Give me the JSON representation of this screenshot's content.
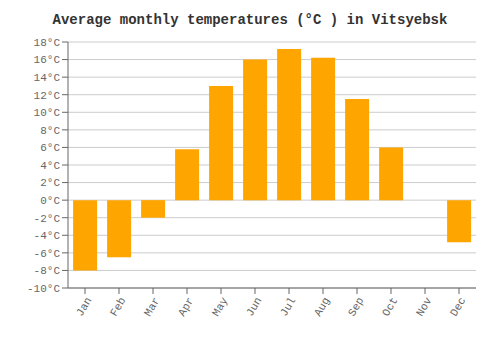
{
  "chart_data": {
    "type": "bar",
    "title": "Average monthly temperatures (°C ) in Vitsyebsk",
    "categories": [
      "Jan",
      "Feb",
      "Mar",
      "Apr",
      "May",
      "Jun",
      "Jul",
      "Aug",
      "Sep",
      "Oct",
      "Nov",
      "Dec"
    ],
    "values": [
      -8,
      -6.5,
      -2,
      5.8,
      13,
      16,
      17.2,
      16.2,
      11.5,
      6,
      0,
      -4.8
    ],
    "color": "#FFA500",
    "ylim": [
      -10,
      18
    ],
    "yticks": [
      {
        "value": -10,
        "label": "-10°C"
      },
      {
        "value": -8,
        "label": "-8°C"
      },
      {
        "value": -6,
        "label": "-6°C"
      },
      {
        "value": -4,
        "label": "-4°C"
      },
      {
        "value": -2,
        "label": "-2°C"
      },
      {
        "value": 0,
        "label": "0°C"
      },
      {
        "value": 2,
        "label": "2°C"
      },
      {
        "value": 4,
        "label": "4°C"
      },
      {
        "value": 6,
        "label": "6°C"
      },
      {
        "value": 8,
        "label": "8°C"
      },
      {
        "value": 10,
        "label": "10°C"
      },
      {
        "value": 12,
        "label": "12°C"
      },
      {
        "value": 14,
        "label": "14°C"
      },
      {
        "value": 16,
        "label": "16°C"
      },
      {
        "value": 18,
        "label": "18°C"
      }
    ],
    "grid": true
  }
}
